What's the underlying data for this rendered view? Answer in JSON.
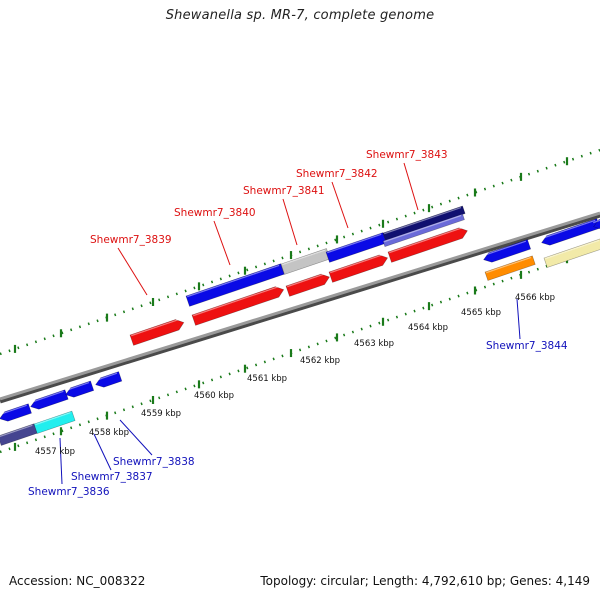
{
  "title": "Shewanella sp. MR-7, complete genome",
  "footer": {
    "accession": "Accession: NC_008322",
    "stats": "Topology: circular; Length: 4,792,610 bp; Genes: 4,149"
  },
  "colors": {
    "label_red": "#dd1111",
    "label_blue": "#1111bb",
    "backbone": "#8c8c8c",
    "tick_green": "#1a7a1a",
    "blue": "#0a0ae6",
    "red": "#ee1111",
    "navy": "#101070",
    "gray": "#c4c4c4",
    "cyan": "#22eeee",
    "orange": "#ff8c00",
    "cream": "#f2eaa8",
    "slate": "#454590",
    "lavender": "#6a6ad8"
  },
  "axis_labels": [
    "4557 kbp",
    "4558 kbp",
    "4559 kbp",
    "4560 kbp",
    "4561 kbp",
    "4562 kbp",
    "4563 kbp",
    "4564 kbp",
    "4565 kbp",
    "4566 kbp"
  ],
  "gene_labels": {
    "top": [
      "Shewmr7_3839",
      "Shewmr7_3840",
      "Shewmr7_3841",
      "Shewmr7_3842",
      "Shewmr7_3843"
    ],
    "bottom": [
      "Shewmr7_3836",
      "Shewmr7_3837",
      "Shewmr7_3838",
      "Shewmr7_3844"
    ]
  }
}
